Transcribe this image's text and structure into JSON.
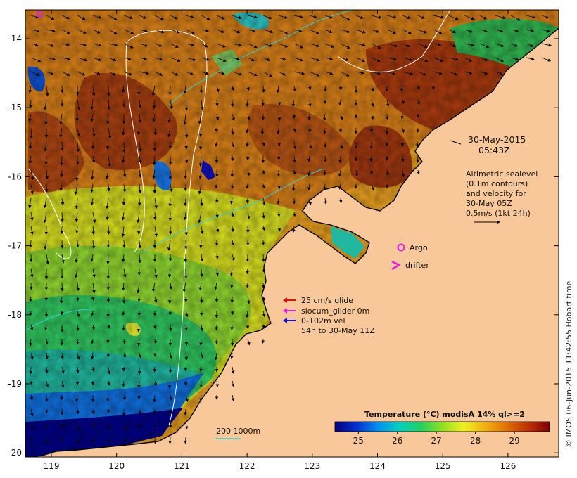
{
  "map": {
    "title_date": "30-May-2015",
    "title_time": "05:43Z",
    "sealevel_lines": [
      "Altimetric sealevel",
      "(0.1m contours)",
      "and velocity for",
      "30-May 05Z",
      "0.5m/s (1kt 24h)"
    ],
    "lon_ticks": [
      "119",
      "120",
      "121",
      "122",
      "123",
      "124",
      "125",
      "126"
    ],
    "lat_ticks": [
      "-14",
      "-15",
      "-16",
      "-17",
      "-18",
      "-19",
      "-20"
    ],
    "argo_label": "Argo",
    "drifter_label": "drifter",
    "glider_legend": [
      {
        "label": "25 cm/s glide",
        "color": "#e01010"
      },
      {
        "label": "slocum_glider 0m",
        "color": "#e020e0"
      },
      {
        "label": "0-102m vel",
        "color": "#1010d0"
      }
    ],
    "glider_period": "54h to 30-May 11Z",
    "depth_label": "200  1000m",
    "credit": "© IMOS 06-Jun-2015 11:42:55 Hobart time"
  },
  "colorbar": {
    "title": "Temperature (°C) modisA 14% ql>=2",
    "ticks": [
      "25",
      "26",
      "27",
      "28",
      "29"
    ],
    "colors": [
      "#00007a",
      "#0030d0",
      "#0090f0",
      "#00d0c0",
      "#20d060",
      "#90e020",
      "#f0f020",
      "#f0b010",
      "#e07000",
      "#c03000",
      "#800000"
    ]
  },
  "colors": {
    "land": "#f8c89a",
    "argo": "#e020e0",
    "drifter": "#e020e0"
  }
}
